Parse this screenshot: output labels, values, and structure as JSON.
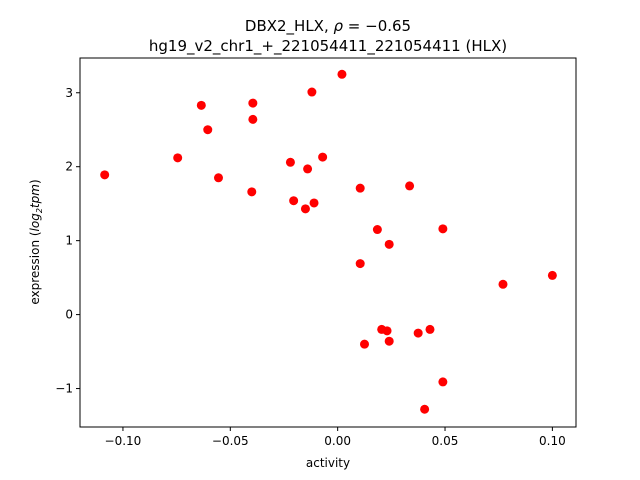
{
  "chart_data": {
    "type": "scatter",
    "title_line1_prefix": "DBX2_HLX, ",
    "title_line1_rho": "ρ",
    "title_line1_suffix": " = −0.65",
    "title_line2": "hg19_v2_chr1_+_221054411_221054411 (HLX)",
    "xlabel": "activity",
    "ylabel_prefix": "expression (",
    "ylabel_log": "log",
    "ylabel_sub": "2",
    "ylabel_tpm": "tpm",
    "ylabel_suffix": ")",
    "xlim": [
      -0.12,
      0.111
    ],
    "ylim": [
      -1.52,
      3.47
    ],
    "xticks": [
      -0.1,
      -0.05,
      0.0,
      0.05,
      0.1
    ],
    "xtick_labels": [
      "−0.10",
      "−0.05",
      "0.00",
      "0.05",
      "0.10"
    ],
    "yticks": [
      -1,
      0,
      1,
      2,
      3
    ],
    "ytick_labels": [
      "−1",
      "0",
      "1",
      "2",
      "3"
    ],
    "marker_color": "#ff0000",
    "grid": false,
    "points": [
      {
        "x": -0.1085,
        "y": 1.89
      },
      {
        "x": -0.0745,
        "y": 2.12
      },
      {
        "x": -0.0635,
        "y": 2.83
      },
      {
        "x": -0.0605,
        "y": 2.5
      },
      {
        "x": -0.0555,
        "y": 1.85
      },
      {
        "x": -0.0395,
        "y": 2.86
      },
      {
        "x": -0.0395,
        "y": 2.64
      },
      {
        "x": -0.04,
        "y": 1.66
      },
      {
        "x": -0.022,
        "y": 2.06
      },
      {
        "x": -0.0205,
        "y": 1.54
      },
      {
        "x": -0.015,
        "y": 1.43
      },
      {
        "x": -0.014,
        "y": 1.97
      },
      {
        "x": -0.012,
        "y": 3.01
      },
      {
        "x": -0.011,
        "y": 1.51
      },
      {
        "x": -0.007,
        "y": 2.13
      },
      {
        "x": 0.002,
        "y": 3.25
      },
      {
        "x": 0.0105,
        "y": 1.71
      },
      {
        "x": 0.0105,
        "y": 0.69
      },
      {
        "x": 0.0125,
        "y": -0.4
      },
      {
        "x": 0.0185,
        "y": 1.15
      },
      {
        "x": 0.0205,
        "y": -0.2
      },
      {
        "x": 0.023,
        "y": -0.22
      },
      {
        "x": 0.024,
        "y": 0.95
      },
      {
        "x": 0.024,
        "y": -0.36
      },
      {
        "x": 0.0335,
        "y": 1.74
      },
      {
        "x": 0.0375,
        "y": -0.25
      },
      {
        "x": 0.0405,
        "y": -1.28
      },
      {
        "x": 0.043,
        "y": -0.2
      },
      {
        "x": 0.049,
        "y": 1.16
      },
      {
        "x": 0.049,
        "y": -0.91
      },
      {
        "x": 0.077,
        "y": 0.41
      },
      {
        "x": 0.1,
        "y": 0.53
      }
    ]
  }
}
